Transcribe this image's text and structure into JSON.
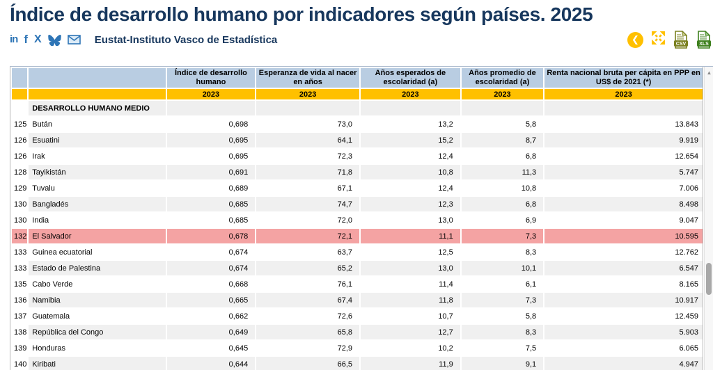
{
  "header": {
    "title": "Índice de desarrollo humano por indicadores según países. 2025",
    "source": "Eustat-Instituto Vasco de Estadística"
  },
  "share": {
    "linkedin_glyph": "in",
    "facebook_glyph": "f",
    "x_glyph": "X"
  },
  "toolbar": {
    "csv_label": "CSV",
    "xls_label": "XLS"
  },
  "colors": {
    "title_navy": "#17375D",
    "share_icon_blue": "#2E75B6",
    "header_blue": "#B9CDE2",
    "year_orange": "#FFC000",
    "highlight_pink": "#F4A3A3",
    "alt_row_gray": "#F0F0F0",
    "csv_icon_green": "#7A801F",
    "xls_icon_green": "#3E801E",
    "toolbar_orange": "#FFC000"
  },
  "table": {
    "columns": [
      "Índice de desarrollo humano",
      "Esperanza de vida al nacer en años",
      "Años esperados de escolaridad (a)",
      "Años promedio de escolaridad (a)",
      "Renta nacional bruta per cápita en PPP en US$ de 2021 (*)"
    ],
    "years": [
      "2023",
      "2023",
      "2023",
      "2023",
      "2023"
    ],
    "section_label": "DESARROLLO HUMANO MEDIO",
    "rows": [
      {
        "rank": "125",
        "country": "Bután",
        "values": [
          "0,698",
          "73,0",
          "13,2",
          "5,8",
          "13.843"
        ],
        "highlight": false
      },
      {
        "rank": "126",
        "country": "Esuatini",
        "values": [
          "0,695",
          "64,1",
          "15,2",
          "8,7",
          "9.919"
        ],
        "highlight": false
      },
      {
        "rank": "126",
        "country": "Irak",
        "values": [
          "0,695",
          "72,3",
          "12,4",
          "6,8",
          "12.654"
        ],
        "highlight": false
      },
      {
        "rank": "128",
        "country": "Tayikistán",
        "values": [
          "0,691",
          "71,8",
          "10,8",
          "11,3",
          "5.747"
        ],
        "highlight": false
      },
      {
        "rank": "129",
        "country": "Tuvalu",
        "values": [
          "0,689",
          "67,1",
          "12,4",
          "10,8",
          "7.006"
        ],
        "highlight": false
      },
      {
        "rank": "130",
        "country": "Bangladés",
        "values": [
          "0,685",
          "74,7",
          "12,3",
          "6,8",
          "8.498"
        ],
        "highlight": false
      },
      {
        "rank": "130",
        "country": "India",
        "values": [
          "0,685",
          "72,0",
          "13,0",
          "6,9",
          "9.047"
        ],
        "highlight": false
      },
      {
        "rank": "132",
        "country": "El Salvador",
        "values": [
          "0,678",
          "72,1",
          "11,1",
          "7,3",
          "10.595"
        ],
        "highlight": true
      },
      {
        "rank": "133",
        "country": "Guinea ecuatorial",
        "values": [
          "0,674",
          "63,7",
          "12,5",
          "8,3",
          "12.762"
        ],
        "highlight": false
      },
      {
        "rank": "133",
        "country": "Estado de Palestina",
        "values": [
          "0,674",
          "65,2",
          "13,0",
          "10,1",
          "6.547"
        ],
        "highlight": false
      },
      {
        "rank": "135",
        "country": "Cabo Verde",
        "values": [
          "0,668",
          "76,1",
          "11,4",
          "6,1",
          "8.165"
        ],
        "highlight": false
      },
      {
        "rank": "136",
        "country": "Namibia",
        "values": [
          "0,665",
          "67,4",
          "11,8",
          "7,3",
          "10.917"
        ],
        "highlight": false
      },
      {
        "rank": "137",
        "country": "Guatemala",
        "values": [
          "0,662",
          "72,6",
          "10,7",
          "5,8",
          "12.459"
        ],
        "highlight": false
      },
      {
        "rank": "138",
        "country": "República del Congo",
        "values": [
          "0,649",
          "65,8",
          "12,7",
          "8,3",
          "5.903"
        ],
        "highlight": false
      },
      {
        "rank": "139",
        "country": "Honduras",
        "values": [
          "0,645",
          "72,9",
          "10,2",
          "7,5",
          "6.065"
        ],
        "highlight": false
      },
      {
        "rank": "140",
        "country": "Kiribati",
        "values": [
          "0,644",
          "66,5",
          "11,9",
          "9,1",
          "4.947"
        ],
        "highlight": false
      }
    ]
  }
}
